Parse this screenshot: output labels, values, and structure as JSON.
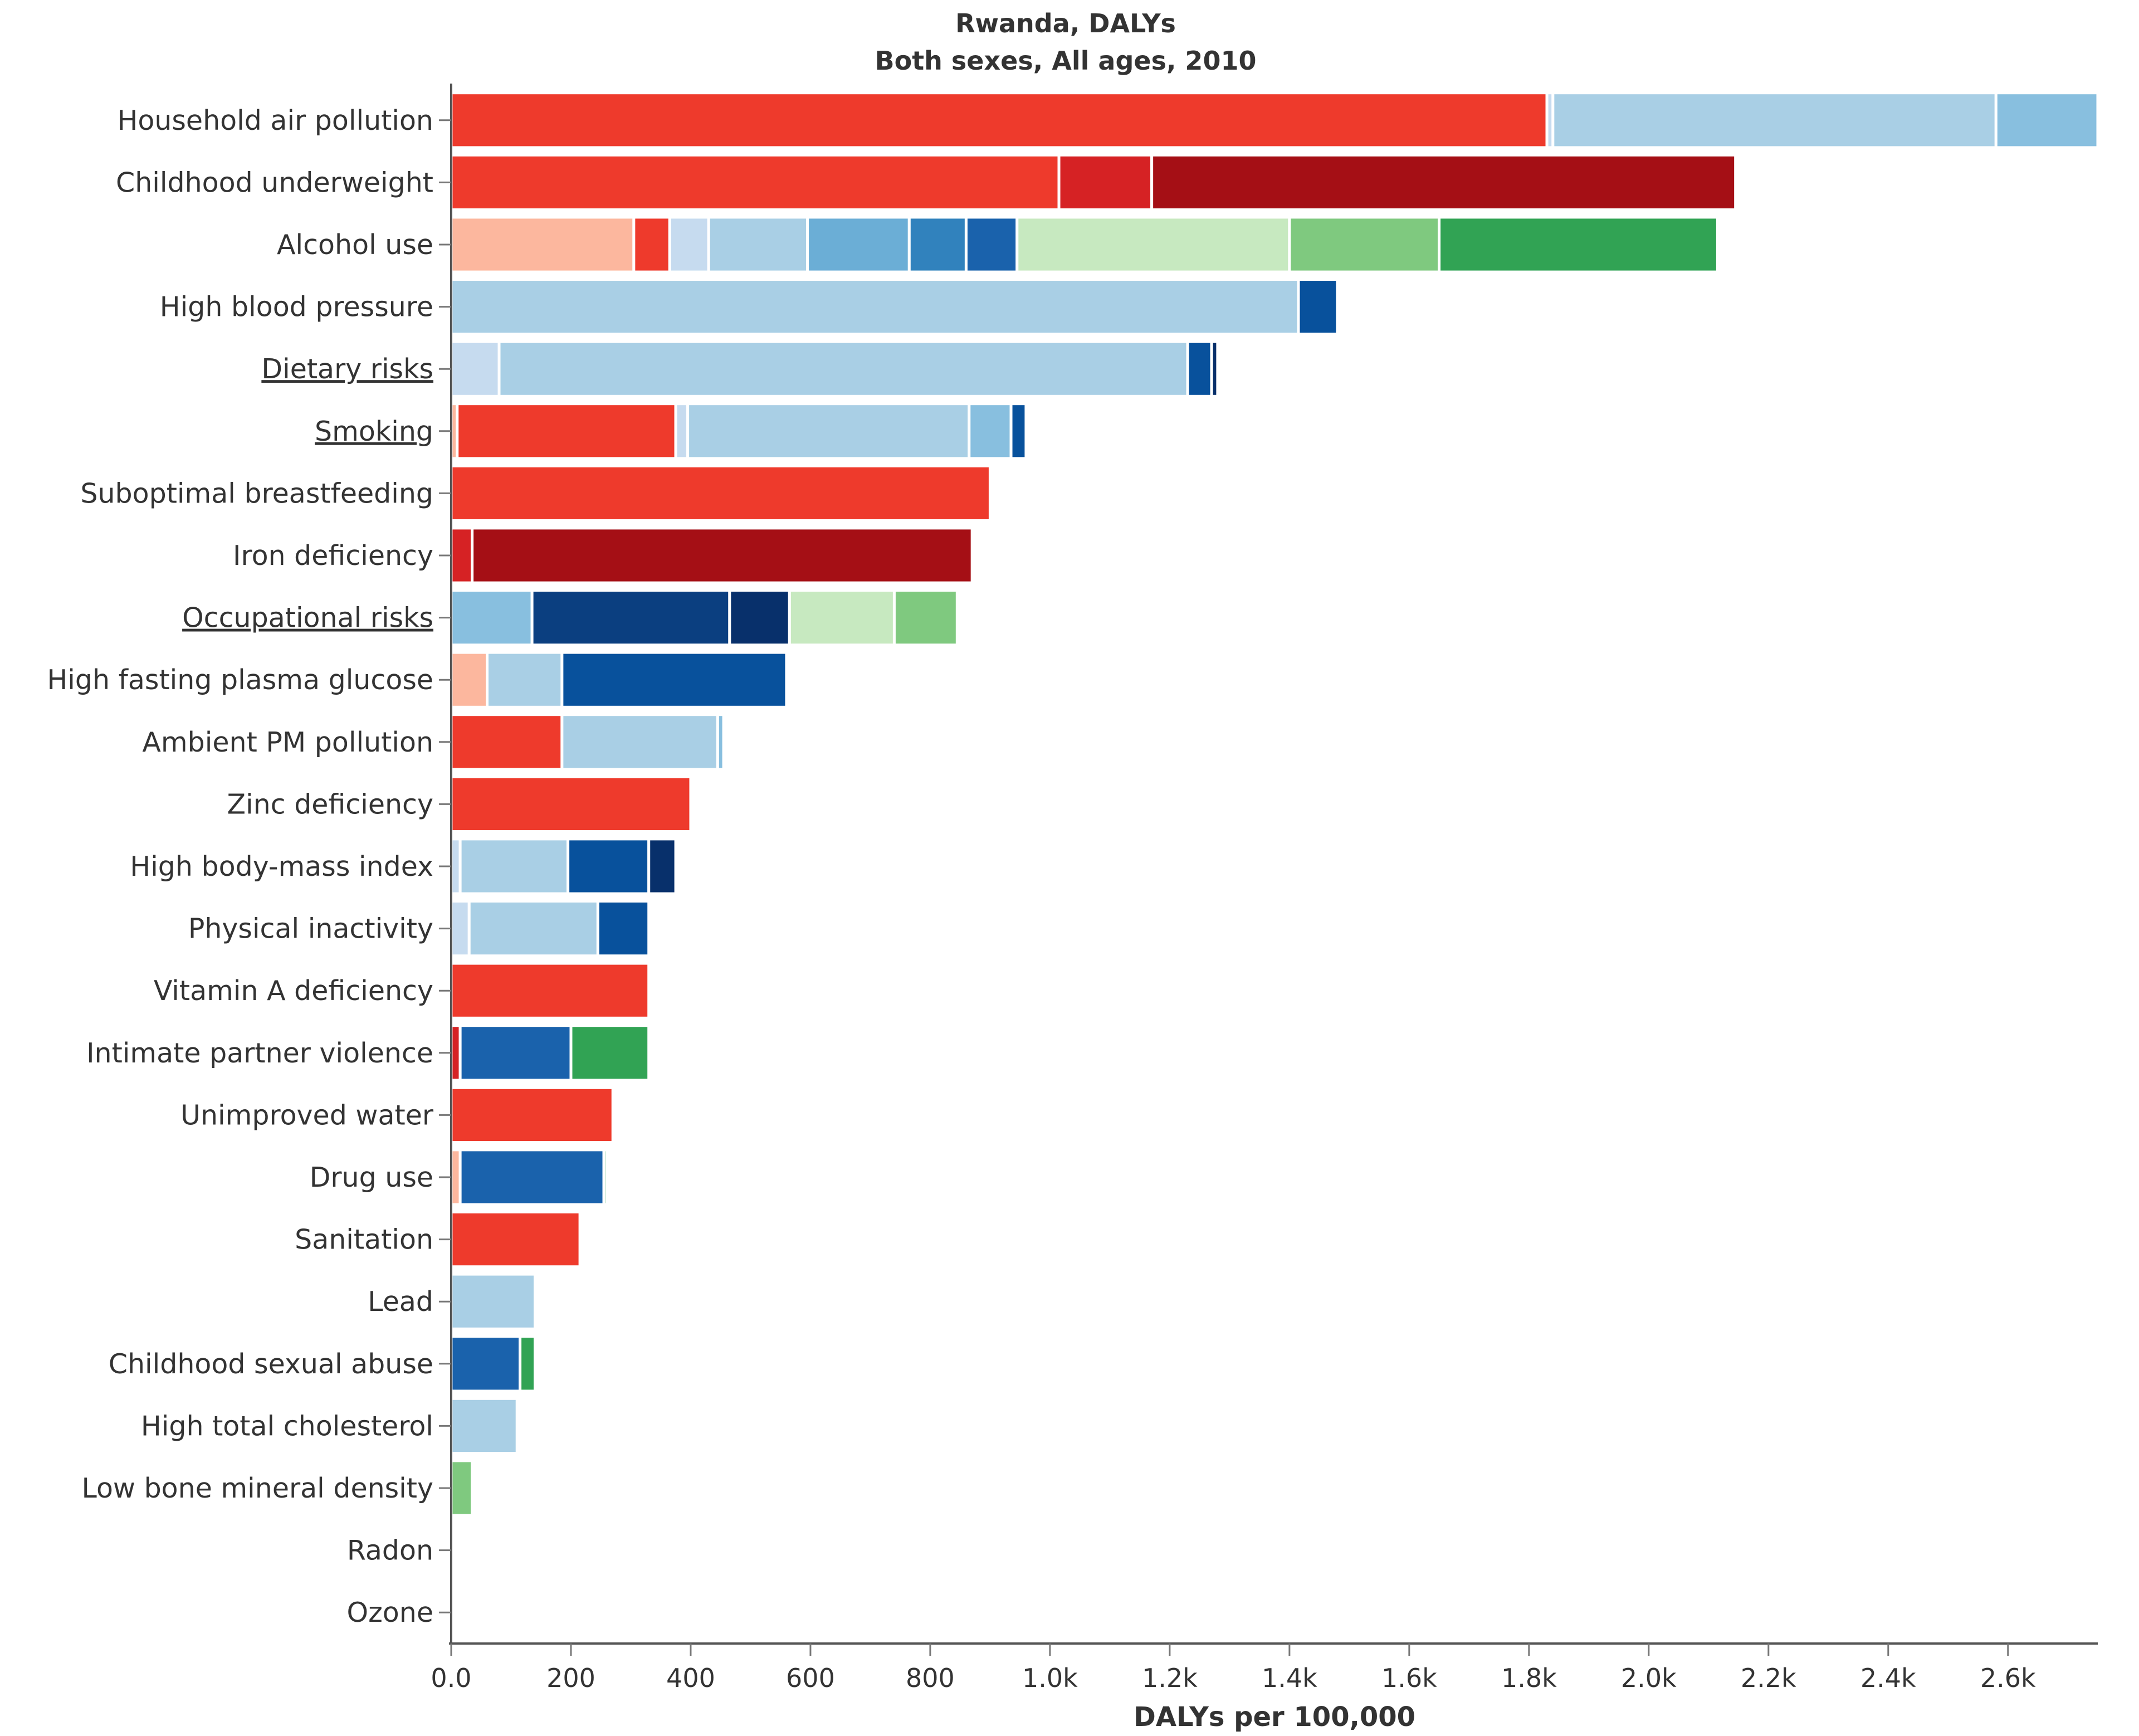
{
  "chart_data": {
    "type": "bar",
    "orientation": "horizontal",
    "stacked": true,
    "title": "Rwanda, DALYs",
    "subtitle": "Both sexes, All ages, 2010",
    "xlabel": "DALYs per 100,000",
    "ylabel": "",
    "xlim": [
      0,
      2750
    ],
    "x_ticks": [
      0,
      200,
      400,
      600,
      800,
      1000,
      1200,
      1400,
      1600,
      1800,
      2000,
      2200,
      2400,
      2600
    ],
    "x_tick_labels": [
      "0.0",
      "200",
      "400",
      "600",
      "800",
      "1.0k",
      "1.2k",
      "1.4k",
      "1.6k",
      "1.8k",
      "2.0k",
      "2.2k",
      "2.4k",
      "2.6k"
    ],
    "grid": false,
    "legend": "none",
    "categories": [
      "Household air pollution",
      "Childhood underweight",
      "Alcohol use",
      "High blood pressure",
      "Dietary risks",
      "Smoking",
      "Suboptimal breastfeeding",
      "Iron deficiency",
      "Occupational risks",
      "High fasting plasma glucose",
      "Ambient PM pollution",
      "Zinc deficiency",
      "High body-mass index",
      "Physical inactivity",
      "Vitamin A deficiency",
      "Intimate partner violence",
      "Unimproved water",
      "Drug use",
      "Sanitation",
      "Lead",
      "Childhood sexual abuse",
      "High total cholesterol",
      "Low bone mineral density",
      "Radon",
      "Ozone"
    ],
    "underlined_categories": [
      "Dietary risks",
      "Smoking",
      "Occupational risks"
    ],
    "bars": [
      {
        "category": "Household air pollution",
        "segments": [
          {
            "value": 1830,
            "color": "#ee3a2c"
          },
          {
            "value": 10,
            "color": "#c6dbef"
          },
          {
            "value": 740,
            "color": "#a9cfe5"
          },
          {
            "value": 170,
            "color": "#88bfdf"
          }
        ]
      },
      {
        "category": "Childhood underweight",
        "segments": [
          {
            "value": 1015,
            "color": "#ee3a2c"
          },
          {
            "value": 155,
            "color": "#d62224"
          },
          {
            "value": 975,
            "color": "#a50f15"
          }
        ]
      },
      {
        "category": "Alcohol use",
        "segments": [
          {
            "value": 305,
            "color": "#fcb79e"
          },
          {
            "value": 60,
            "color": "#ee3a2c"
          },
          {
            "value": 65,
            "color": "#c6dbef"
          },
          {
            "value": 165,
            "color": "#a9cfe5"
          },
          {
            "value": 170,
            "color": "#6baed6"
          },
          {
            "value": 95,
            "color": "#3182bd"
          },
          {
            "value": 85,
            "color": "#1a62ac"
          },
          {
            "value": 455,
            "color": "#c7e9c0"
          },
          {
            "value": 250,
            "color": "#7fc97f"
          },
          {
            "value": 465,
            "color": "#31a354"
          }
        ]
      },
      {
        "category": "High blood pressure",
        "segments": [
          {
            "value": 1415,
            "color": "#a9cfe5"
          },
          {
            "value": 65,
            "color": "#08519c"
          }
        ]
      },
      {
        "category": "Dietary risks",
        "segments": [
          {
            "value": 80,
            "color": "#c6dbef"
          },
          {
            "value": 1150,
            "color": "#a9cfe5"
          },
          {
            "value": 40,
            "color": "#08519c"
          },
          {
            "value": 10,
            "color": "#08306b"
          }
        ]
      },
      {
        "category": "Smoking",
        "segments": [
          {
            "value": 10,
            "color": "#fcb79e"
          },
          {
            "value": 365,
            "color": "#ee3a2c"
          },
          {
            "value": 20,
            "color": "#c6dbef"
          },
          {
            "value": 470,
            "color": "#a9cfe5"
          },
          {
            "value": 70,
            "color": "#88bfdf"
          },
          {
            "value": 25,
            "color": "#08519c"
          }
        ]
      },
      {
        "category": "Suboptimal breastfeeding",
        "segments": [
          {
            "value": 900,
            "color": "#ee3a2c"
          }
        ]
      },
      {
        "category": "Iron deficiency",
        "segments": [
          {
            "value": 35,
            "color": "#d62224"
          },
          {
            "value": 835,
            "color": "#a50f15"
          }
        ]
      },
      {
        "category": "Occupational risks",
        "segments": [
          {
            "value": 135,
            "color": "#88bfdf"
          },
          {
            "value": 330,
            "color": "#0b3f80"
          },
          {
            "value": 100,
            "color": "#08306b"
          },
          {
            "value": 175,
            "color": "#c7e9c0"
          },
          {
            "value": 105,
            "color": "#7fc97f"
          }
        ]
      },
      {
        "category": "High fasting plasma glucose",
        "segments": [
          {
            "value": 60,
            "color": "#fcb79e"
          },
          {
            "value": 125,
            "color": "#a9cfe5"
          },
          {
            "value": 375,
            "color": "#08519c"
          }
        ]
      },
      {
        "category": "Ambient PM pollution",
        "segments": [
          {
            "value": 185,
            "color": "#ee3a2c"
          },
          {
            "value": 260,
            "color": "#a9cfe5"
          },
          {
            "value": 10,
            "color": "#88bfdf"
          }
        ]
      },
      {
        "category": "Zinc deficiency",
        "segments": [
          {
            "value": 400,
            "color": "#ee3a2c"
          }
        ]
      },
      {
        "category": "High body-mass index",
        "segments": [
          {
            "value": 15,
            "color": "#c6dbef"
          },
          {
            "value": 180,
            "color": "#a9cfe5"
          },
          {
            "value": 135,
            "color": "#08519c"
          },
          {
            "value": 45,
            "color": "#08306b"
          }
        ]
      },
      {
        "category": "Physical inactivity",
        "segments": [
          {
            "value": 30,
            "color": "#c6dbef"
          },
          {
            "value": 215,
            "color": "#a9cfe5"
          },
          {
            "value": 85,
            "color": "#08519c"
          }
        ]
      },
      {
        "category": "Vitamin A deficiency",
        "segments": [
          {
            "value": 330,
            "color": "#ee3a2c"
          }
        ]
      },
      {
        "category": "Intimate partner violence",
        "segments": [
          {
            "value": 15,
            "color": "#d62224"
          },
          {
            "value": 185,
            "color": "#1a62ac"
          },
          {
            "value": 130,
            "color": "#31a354"
          }
        ]
      },
      {
        "category": "Unimproved water",
        "segments": [
          {
            "value": 270,
            "color": "#ee3a2c"
          }
        ]
      },
      {
        "category": "Drug use",
        "segments": [
          {
            "value": 15,
            "color": "#fcb79e"
          },
          {
            "value": 240,
            "color": "#1a62ac"
          },
          {
            "value": 5,
            "color": "#31a354"
          }
        ]
      },
      {
        "category": "Sanitation",
        "segments": [
          {
            "value": 215,
            "color": "#ee3a2c"
          }
        ]
      },
      {
        "category": "Lead",
        "segments": [
          {
            "value": 140,
            "color": "#a9cfe5"
          }
        ]
      },
      {
        "category": "Childhood sexual abuse",
        "segments": [
          {
            "value": 115,
            "color": "#1a62ac"
          },
          {
            "value": 25,
            "color": "#31a354"
          }
        ]
      },
      {
        "category": "High total cholesterol",
        "segments": [
          {
            "value": 110,
            "color": "#a9cfe5"
          }
        ]
      },
      {
        "category": "Low bone mineral density",
        "segments": [
          {
            "value": 35,
            "color": "#7fc97f"
          }
        ]
      },
      {
        "category": "Radon",
        "segments": []
      },
      {
        "category": "Ozone",
        "segments": []
      }
    ]
  }
}
